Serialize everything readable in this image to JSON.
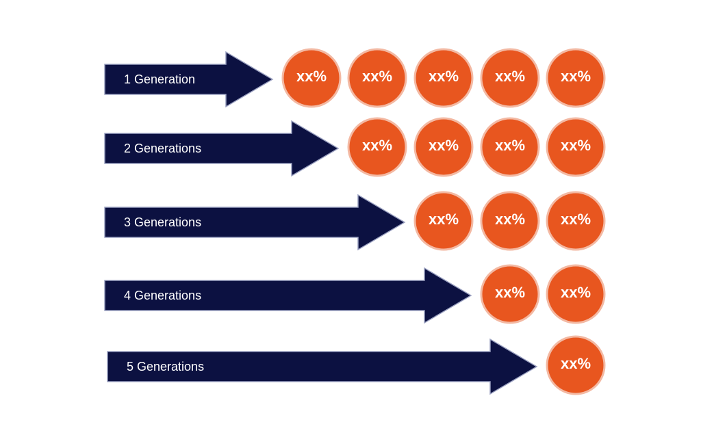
{
  "rows": [
    {
      "label": "1 Generation",
      "values": [
        "xx%",
        "xx%",
        "xx%",
        "xx%",
        "xx%"
      ]
    },
    {
      "label": "2 Generations",
      "values": [
        "xx%",
        "xx%",
        "xx%",
        "xx%"
      ]
    },
    {
      "label": "3 Generations",
      "values": [
        "xx%",
        "xx%",
        "xx%"
      ]
    },
    {
      "label": "4 Generations",
      "values": [
        "xx%",
        "xx%"
      ]
    },
    {
      "label": "5 Generations",
      "values": [
        "xx%"
      ]
    }
  ]
}
